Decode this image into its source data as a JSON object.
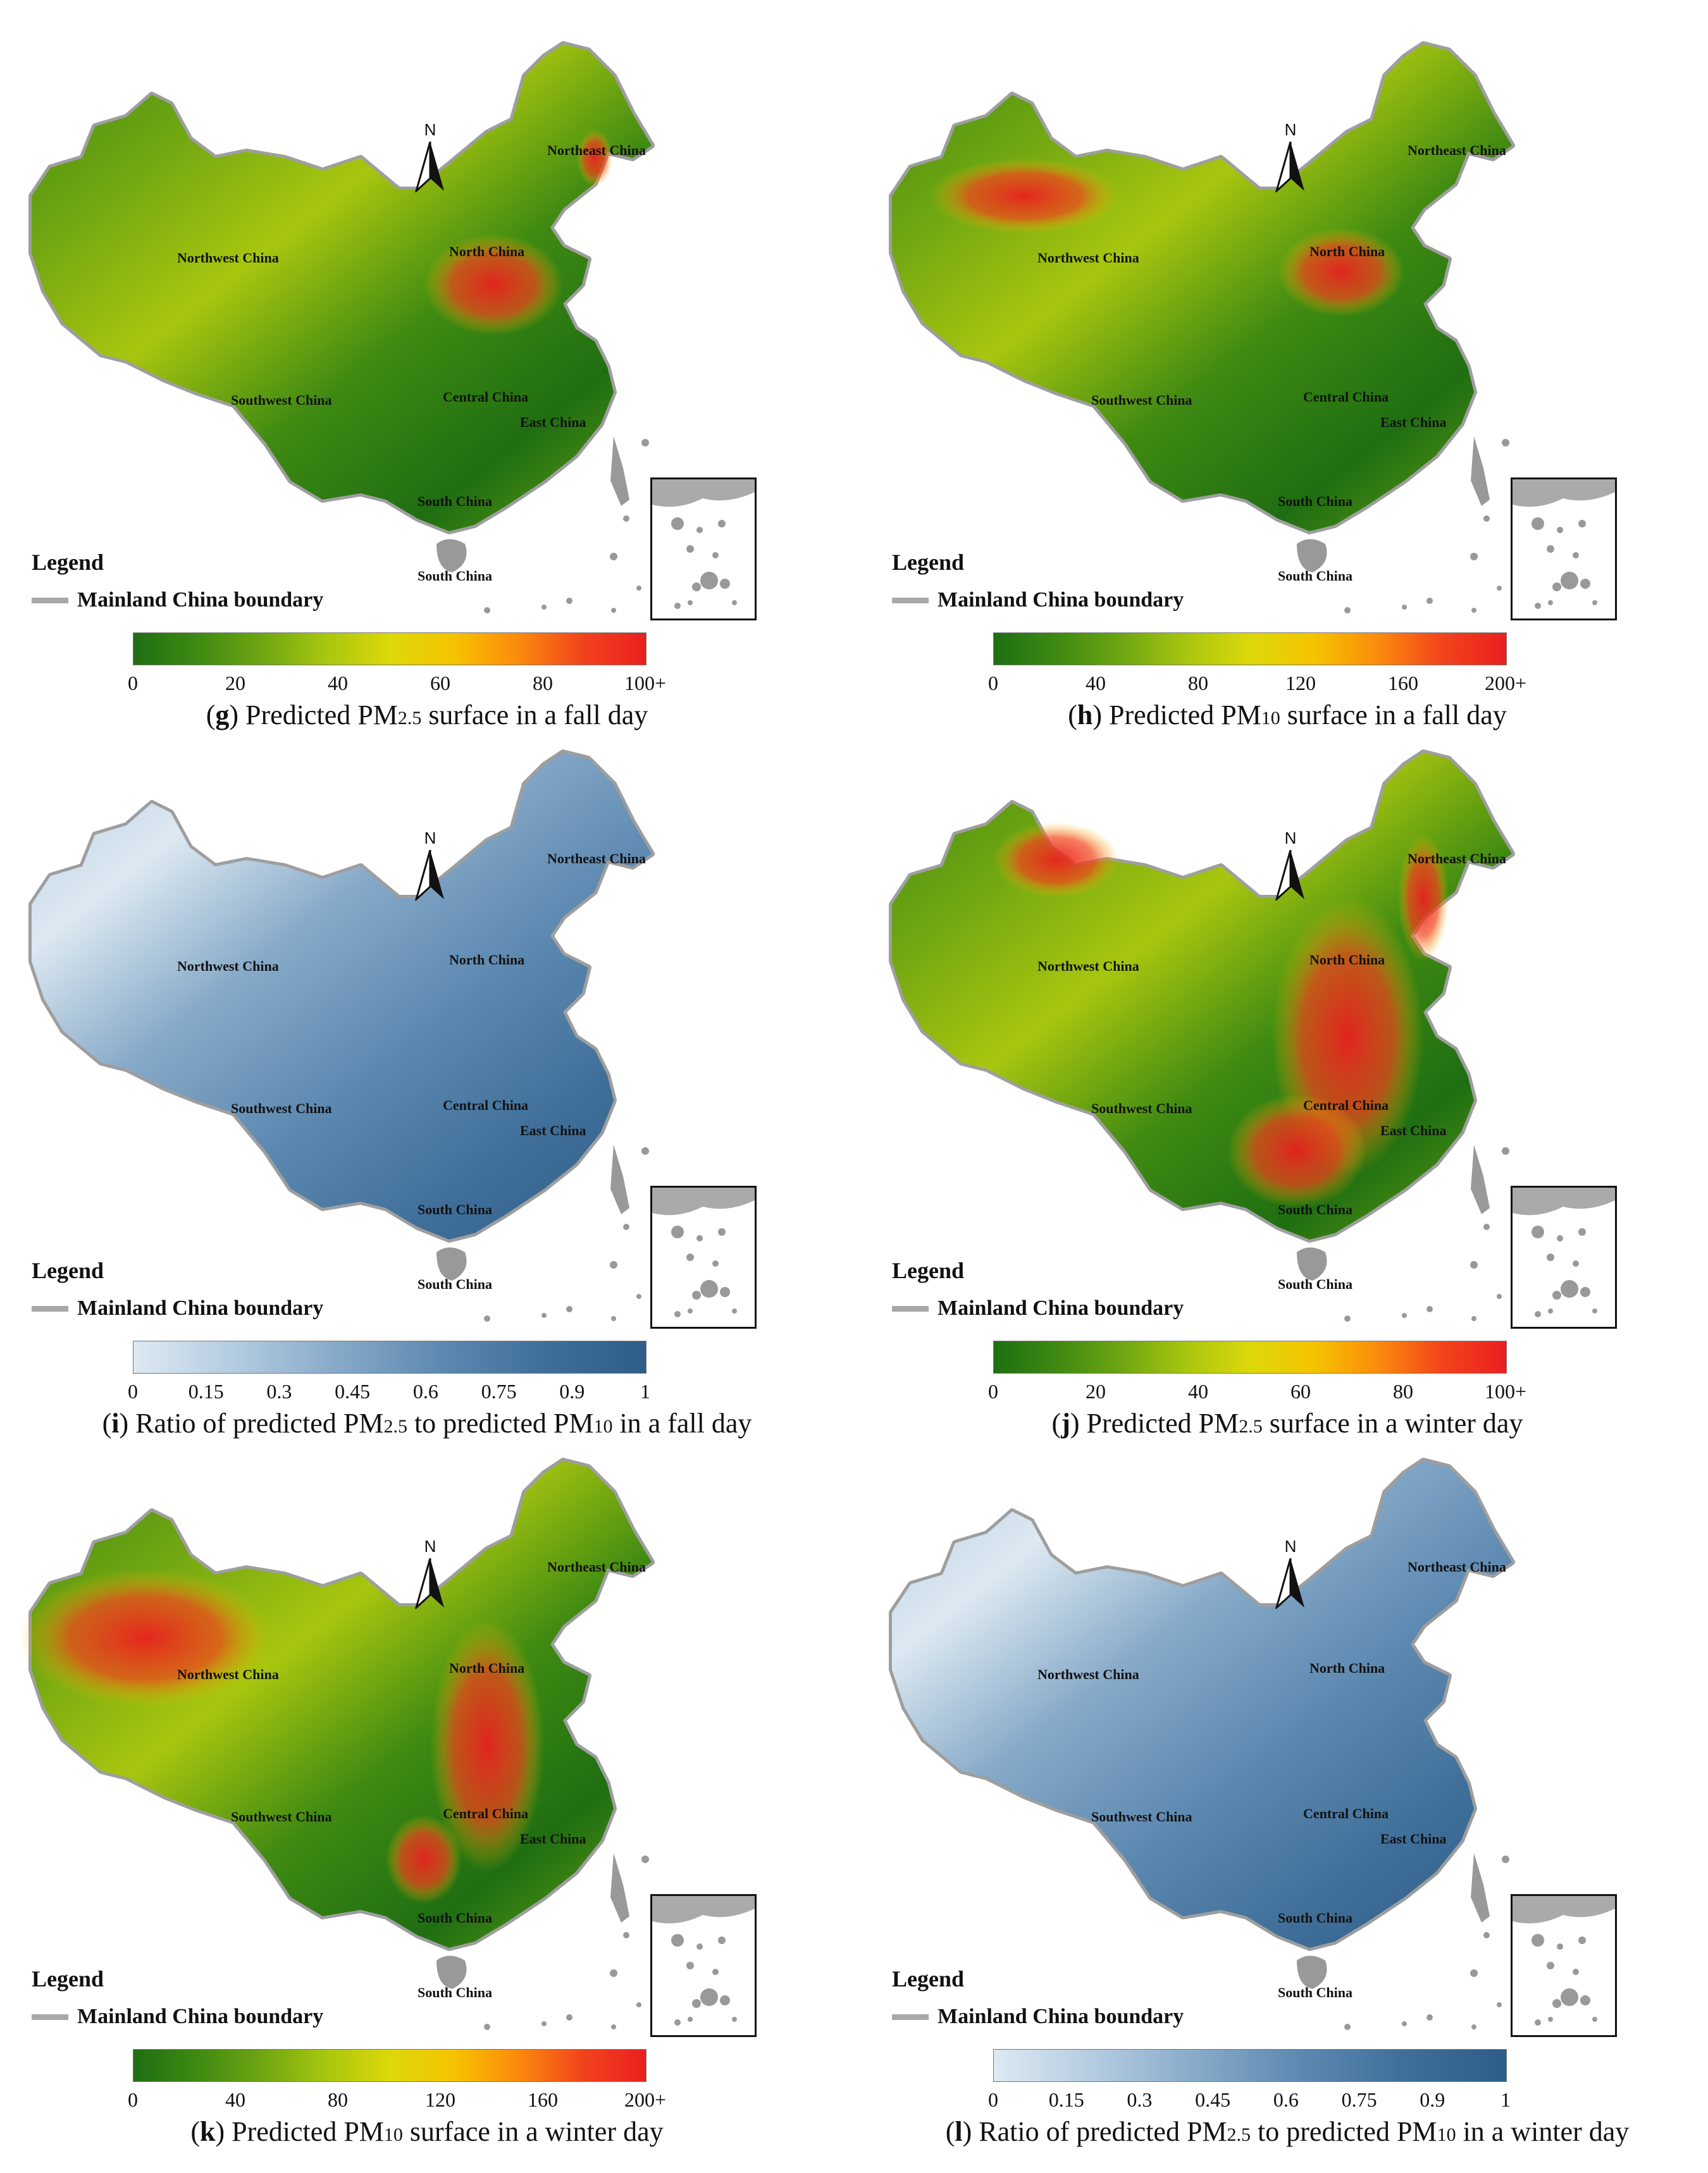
{
  "scales": {
    "green_red": [
      "#1f6e12",
      "#3f8a12",
      "#6ea512",
      "#a8c60f",
      "#dcd80a",
      "#f6c300",
      "#fb8b0c",
      "#f2441c",
      "#ea1f1f"
    ],
    "blue": [
      "#dde9f2",
      "#b3cbe0",
      "#86a9c8",
      "#5d89b1",
      "#3f6f99",
      "#2d5d88"
    ]
  },
  "legend": {
    "title": "Legend",
    "boundary_label": "Mainland China boundary"
  },
  "north_label": "N",
  "region_labels": {
    "northeast": "Northeast China",
    "north": "North China",
    "northwest": "Northwest China",
    "southwest": "Southwest China",
    "central": "Central China",
    "east": "East China",
    "south": "South China",
    "south2": "South China"
  },
  "panels": [
    {
      "id": "g",
      "letter": "g",
      "caption_pre": ") Predicted PM",
      "sub": "2.5",
      "caption_post": " surface in a fall day",
      "palette": "green_red",
      "ticks": [
        "0",
        "20",
        "40",
        "60",
        "80",
        "100+"
      ],
      "hotspot": "north"
    },
    {
      "id": "h",
      "letter": "h",
      "caption_pre": ") Predicted PM",
      "sub": "10",
      "caption_post": " surface in a fall day",
      "palette": "green_red",
      "ticks": [
        "0",
        "40",
        "80",
        "120",
        "160",
        "200+"
      ],
      "hotspot": "north_west"
    },
    {
      "id": "i",
      "letter": "i",
      "caption_pre": ") Ratio of predicted PM",
      "sub": "2.5",
      "caption_post": " to predicted PM",
      "sub2": "10",
      "caption_tail": " in a fall day",
      "palette": "blue",
      "ticks": [
        "0",
        "0.15",
        "0.3",
        "0.45",
        "0.6",
        "0.75",
        "0.9",
        "1"
      ],
      "hotspot": "none"
    },
    {
      "id": "j",
      "letter": "j",
      "caption_pre": ") Predicted PM",
      "sub": "2.5",
      "caption_post": " surface in a winter day",
      "palette": "green_red",
      "ticks": [
        "0",
        "20",
        "40",
        "60",
        "80",
        "100+"
      ],
      "hotspot": "central"
    },
    {
      "id": "k",
      "letter": "k",
      "caption_pre": ") Predicted PM",
      "sub": "10",
      "caption_post": " surface in a winter day",
      "palette": "green_red",
      "ticks": [
        "0",
        "40",
        "80",
        "120",
        "160",
        "200+"
      ],
      "hotspot": "northwest_big"
    },
    {
      "id": "l",
      "letter": "l",
      "caption_pre": ") Ratio of predicted PM",
      "sub": "2.5",
      "caption_post": " to predicted PM",
      "sub2": "10",
      "caption_tail": " in a winter day",
      "palette": "blue",
      "ticks": [
        "0",
        "0.15",
        "0.3",
        "0.45",
        "0.6",
        "0.75",
        "0.9",
        "1"
      ],
      "hotspot": "none"
    }
  ]
}
